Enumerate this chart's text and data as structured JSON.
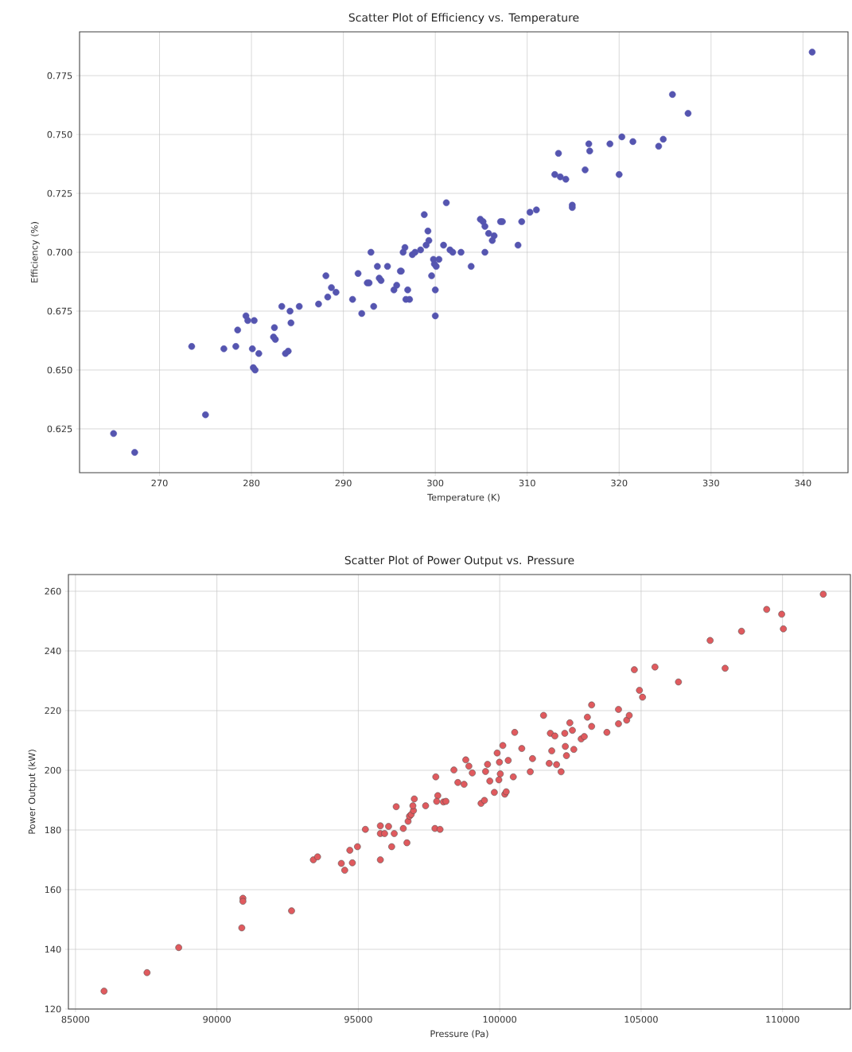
{
  "chart_data": [
    {
      "type": "scatter",
      "title": "Scatter Plot of Efficiency vs. Temperature",
      "xlabel": "Temperature (K)",
      "ylabel": "Efficiency (%)",
      "xlim": [
        261.3,
        344.9
      ],
      "ylim": [
        0.6064,
        0.7936
      ],
      "xticks": [
        270,
        280,
        290,
        300,
        310,
        320,
        330,
        340
      ],
      "yticks": [
        0.625,
        {
          "value": 0.65,
          "label": "0.650"
        },
        0.675,
        {
          "value": 0.7,
          "label": "0.700"
        },
        0.725,
        {
          "value": 0.75,
          "label": "0.750"
        },
        0.775
      ],
      "grid": true,
      "marker": "circle",
      "series": [
        {
          "color": "#5555b0",
          "x": [
            265.0,
            267.3,
            273.5,
            275.0,
            277.0,
            278.3,
            278.5,
            279.4,
            279.6,
            280.3,
            280.1,
            280.2,
            280.4,
            280.8,
            282.5,
            282.4,
            282.6,
            283.3,
            283.7,
            284.0,
            284.2,
            284.3,
            285.2,
            287.3,
            288.1,
            288.3,
            288.7,
            289.2,
            291.0,
            291.6,
            292.0,
            292.6,
            292.8,
            293.0,
            293.3,
            293.7,
            293.9,
            294.1,
            294.8,
            295.5,
            295.8,
            296.2,
            296.3,
            296.5,
            296.7,
            296.8,
            297.0,
            297.2,
            297.5,
            297.8,
            298.4,
            298.8,
            299.0,
            299.2,
            299.3,
            299.6,
            299.8,
            299.9,
            300.0,
            300.0,
            300.1,
            300.4,
            301.2,
            300.9,
            301.6,
            301.9,
            302.8,
            303.9,
            304.9,
            305.2,
            305.4,
            305.4,
            305.8,
            306.2,
            306.4,
            307.1,
            307.3,
            309.0,
            309.4,
            310.3,
            311.0,
            313.0,
            313.4,
            313.6,
            314.2,
            314.9,
            314.9,
            316.3,
            316.7,
            316.8,
            319.0,
            320.0,
            320.3,
            321.5,
            324.3,
            324.8,
            325.8,
            327.5,
            341.0
          ],
          "values": [
            0.623,
            0.615,
            0.66,
            0.631,
            0.659,
            0.66,
            0.667,
            0.673,
            0.671,
            0.671,
            0.659,
            0.651,
            0.65,
            0.657,
            0.668,
            0.664,
            0.663,
            0.677,
            0.657,
            0.658,
            0.675,
            0.67,
            0.677,
            0.678,
            0.69,
            0.681,
            0.685,
            0.683,
            0.68,
            0.691,
            0.674,
            0.687,
            0.687,
            0.7,
            0.677,
            0.694,
            0.689,
            0.688,
            0.694,
            0.684,
            0.686,
            0.692,
            0.692,
            0.7,
            0.702,
            0.68,
            0.684,
            0.68,
            0.699,
            0.7,
            0.701,
            0.716,
            0.703,
            0.709,
            0.705,
            0.69,
            0.697,
            0.695,
            0.673,
            0.684,
            0.694,
            0.697,
            0.721,
            0.703,
            0.701,
            0.7,
            0.7,
            0.694,
            0.714,
            0.713,
            0.711,
            0.7,
            0.708,
            0.705,
            0.707,
            0.713,
            0.713,
            0.703,
            0.713,
            0.717,
            0.718,
            0.733,
            0.742,
            0.732,
            0.731,
            0.72,
            0.719,
            0.735,
            0.746,
            0.743,
            0.746,
            0.733,
            0.749,
            0.747,
            0.745,
            0.748,
            0.767,
            0.759,
            0.785
          ]
        }
      ]
    },
    {
      "type": "scatter",
      "title": "Scatter Plot of Power Output vs. Pressure",
      "xlabel": "Pressure (Pa)",
      "ylabel": "Power Output (kW)",
      "xlim": [
        84750,
        112400
      ],
      "ylim": [
        120,
        265.6
      ],
      "xticks": [
        85000,
        90000,
        95000,
        100000,
        105000,
        110000
      ],
      "yticks": [
        120,
        140,
        160,
        180,
        200,
        220,
        240,
        260
      ],
      "grid": true,
      "marker": "circle",
      "series": [
        {
          "color": "#e05a5e",
          "x": [
            86010,
            87530,
            88650,
            90920,
            90920,
            90880,
            92640,
            93410,
            93560,
            94400,
            94520,
            94700,
            94790,
            94970,
            95250,
            95780,
            95780,
            95780,
            95930,
            96070,
            96180,
            96270,
            96340,
            96590,
            96720,
            96760,
            96810,
            96870,
            96950,
            96930,
            96980,
            97380,
            97710,
            97740,
            97890,
            97810,
            97770,
            98010,
            98100,
            98380,
            98520,
            98740,
            98800,
            98910,
            99030,
            99340,
            99460,
            99500,
            99570,
            99650,
            99810,
            99910,
            99990,
            100020,
            99970,
            100110,
            100180,
            100230,
            100300,
            100480,
            100530,
            100780,
            101080,
            101160,
            101550,
            101750,
            101790,
            101840,
            101950,
            102010,
            102170,
            102300,
            102320,
            102360,
            102480,
            102570,
            102620,
            102880,
            102990,
            103100,
            103250,
            103250,
            103790,
            104200,
            104200,
            104490,
            104580,
            104760,
            104940,
            105050,
            105490,
            106320,
            107440,
            107970,
            108550,
            109440,
            109970,
            110030,
            111440
          ],
          "values": [
            126.0,
            132.2,
            140.6,
            157.1,
            156.1,
            147.2,
            152.9,
            170.0,
            171.0,
            168.8,
            166.5,
            173.2,
            169.0,
            174.4,
            180.2,
            181.4,
            178.8,
            170.0,
            178.8,
            181.2,
            174.4,
            178.8,
            187.8,
            180.5,
            175.7,
            182.9,
            184.6,
            185.2,
            186.5,
            188.1,
            190.4,
            188.1,
            180.5,
            197.8,
            180.2,
            191.5,
            189.6,
            189.4,
            189.6,
            200.1,
            195.9,
            195.3,
            203.5,
            201.4,
            199.1,
            188.9,
            189.9,
            199.6,
            202.0,
            196.4,
            192.6,
            205.8,
            202.7,
            198.8,
            196.8,
            208.3,
            192.0,
            192.8,
            203.3,
            197.8,
            212.7,
            207.3,
            199.5,
            203.9,
            218.4,
            202.3,
            212.4,
            206.5,
            211.5,
            201.9,
            199.5,
            212.4,
            208.0,
            204.9,
            215.9,
            213.4,
            207.0,
            210.5,
            211.3,
            217.8,
            221.9,
            214.7,
            212.7,
            220.4,
            215.6,
            216.8,
            218.4,
            233.7,
            226.8,
            224.5,
            234.6,
            229.6,
            243.5,
            234.2,
            246.6,
            253.9,
            252.3,
            247.4,
            259.0
          ]
        }
      ]
    }
  ]
}
